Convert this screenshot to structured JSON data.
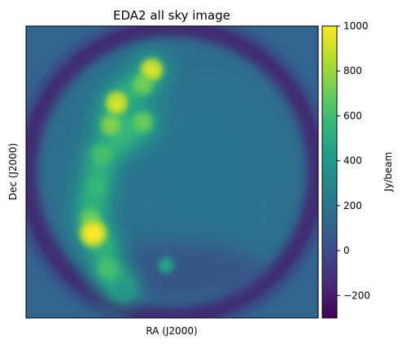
{
  "chart_data": {
    "type": "heatmap",
    "title": "EDA2 all sky image",
    "xlabel": "RA (J2000)",
    "ylabel": "Dec (J2000)",
    "colorbar": {
      "label": "Jy/beam",
      "colormap": "viridis",
      "range": [
        -300,
        1000
      ],
      "ticks": [
        -200,
        0,
        200,
        400,
        600,
        800,
        1000
      ],
      "tick_labels": [
        "−200",
        "0",
        "200",
        "400",
        "600",
        "800",
        "1000"
      ]
    },
    "x_ticks_shown": false,
    "y_ticks_shown": false,
    "features": {
      "background_outside_horizon": 120,
      "sky_disc_level": 180,
      "horizon_ring_level": -220,
      "galactic_plane": [
        {
          "u": 0.43,
          "v": 0.15,
          "value": 980
        },
        {
          "u": 0.4,
          "v": 0.2,
          "value": 720
        },
        {
          "u": 0.31,
          "v": 0.26,
          "value": 940
        },
        {
          "u": 0.29,
          "v": 0.34,
          "value": 760
        },
        {
          "u": 0.4,
          "v": 0.33,
          "value": 700
        },
        {
          "u": 0.26,
          "v": 0.44,
          "value": 620
        },
        {
          "u": 0.24,
          "v": 0.55,
          "value": 560
        },
        {
          "u": 0.22,
          "v": 0.66,
          "value": 700
        },
        {
          "u": 0.26,
          "v": 0.75,
          "value": 520
        },
        {
          "u": 0.28,
          "v": 0.83,
          "value": 620
        },
        {
          "u": 0.33,
          "v": 0.9,
          "value": 380
        }
      ],
      "bright_sources": [
        {
          "u": 0.23,
          "v": 0.71,
          "value": 1000
        },
        {
          "u": 0.31,
          "v": 0.27,
          "value": 1000
        },
        {
          "u": 0.43,
          "v": 0.15,
          "value": 1000
        },
        {
          "u": 0.48,
          "v": 0.82,
          "value": 500
        }
      ]
    }
  }
}
